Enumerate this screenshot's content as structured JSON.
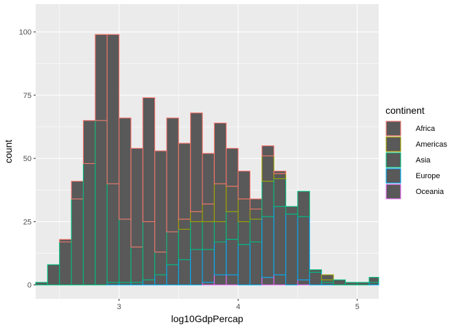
{
  "chart_data": {
    "type": "bar",
    "subtype": "stacked-histogram",
    "title": "",
    "xlabel": "log10GdpPercap",
    "ylabel": "count",
    "xlim": [
      2.3,
      5.18
    ],
    "ylim": [
      -5.5,
      111
    ],
    "x_ticks": [
      3,
      4,
      5
    ],
    "x_tick_labels": [
      "3",
      "4",
      "5"
    ],
    "y_ticks": [
      0,
      25,
      50,
      75,
      100
    ],
    "y_tick_labels": [
      "0",
      "25",
      "50",
      "75",
      "100"
    ],
    "grid": true,
    "stacking_order": [
      "Africa",
      "Americas",
      "Asia",
      "Europe",
      "Oceania"
    ],
    "bin_centers": [
      2.35,
      2.45,
      2.55,
      2.65,
      2.75,
      2.85,
      2.95,
      3.05,
      3.15,
      3.25,
      3.35,
      3.45,
      3.55,
      3.65,
      3.75,
      3.85,
      3.95,
      4.05,
      4.15,
      4.25,
      4.35,
      4.45,
      4.55,
      4.65,
      4.75,
      4.85,
      4.95,
      5.05,
      5.15,
      5.25
    ],
    "bin_width": 0.1,
    "series": [
      {
        "name": "Africa",
        "values": [
          0,
          0,
          1,
          7,
          17,
          34,
          59,
          40,
          39,
          49,
          40,
          45,
          30,
          39,
          20,
          24,
          15,
          11,
          4,
          4,
          1,
          0,
          0,
          0,
          0,
          0,
          0,
          0,
          0,
          0
        ]
      },
      {
        "name": "Americas",
        "values": [
          0,
          0,
          0,
          0,
          0,
          0,
          0,
          0,
          0,
          0,
          0,
          0,
          4,
          4,
          7,
          15,
          10,
          9,
          4,
          10,
          2,
          0,
          0,
          0,
          2,
          0,
          0,
          0,
          0,
          0
        ]
      },
      {
        "name": "Asia",
        "values": [
          1,
          8,
          17,
          34,
          48,
          65,
          39,
          25,
          14,
          23,
          9,
          13,
          12,
          11,
          11,
          8,
          11,
          9,
          9,
          14,
          11,
          3,
          10,
          1,
          1,
          2,
          1,
          1,
          2,
          0
        ]
      },
      {
        "name": "Europe",
        "values": [
          0,
          0,
          0,
          0,
          0,
          0,
          1,
          1,
          1,
          2,
          4,
          8,
          10,
          14,
          13,
          13,
          14,
          16,
          17,
          24,
          27,
          28,
          25,
          5,
          1,
          0,
          0,
          0,
          1,
          0
        ]
      },
      {
        "name": "Oceania",
        "values": [
          0,
          0,
          0,
          0,
          0,
          0,
          0,
          0,
          0,
          0,
          0,
          0,
          0,
          0,
          1,
          4,
          4,
          0,
          0,
          3,
          4,
          0,
          2,
          0,
          0,
          0,
          0,
          0,
          0,
          0
        ]
      }
    ],
    "legend": {
      "title": "continent",
      "placement": "right"
    },
    "colors": {
      "panel_background": "#ebebeb",
      "grid_major": "#ffffff",
      "bar_fill": "#595959",
      "Africa": "#F8766D",
      "Americas": "#A3A500",
      "Asia": "#00BF7D",
      "Europe": "#00B0F6",
      "Oceania": "#E76BF3"
    }
  }
}
